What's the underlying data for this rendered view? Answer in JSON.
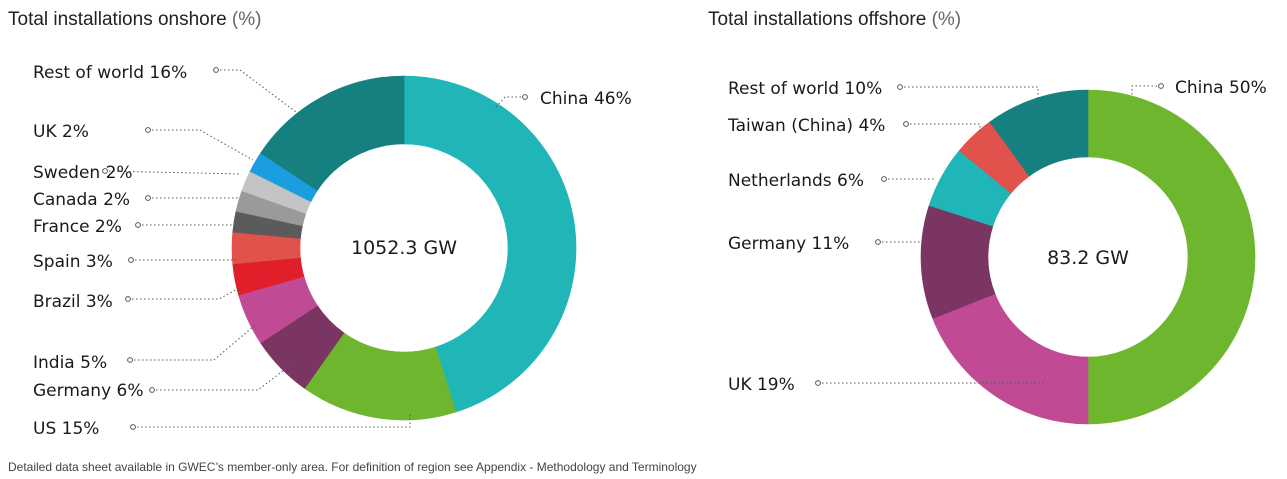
{
  "footnote": "Detailed data sheet available in GWEC’s member-only area. For definition of region see Appendix - Methodology and Terminology",
  "chart_data": [
    {
      "type": "pie",
      "title": "Total installations onshore",
      "title_unit": "(%)",
      "center_label": "1052.3 GW",
      "slices": [
        {
          "label": "China 46%",
          "name": "China",
          "value": 46,
          "color": "#20b5b6"
        },
        {
          "label": "US 15%",
          "name": "US",
          "value": 15,
          "color": "#6fb62f"
        },
        {
          "label": "Germany 6%",
          "name": "Germany",
          "value": 6,
          "color": "#7b3562"
        },
        {
          "label": "India 5%",
          "name": "India",
          "value": 5,
          "color": "#c04a94"
        },
        {
          "label": "Brazil 3%",
          "name": "Brazil",
          "value": 3,
          "color": "#e01f2b"
        },
        {
          "label": "Spain 3%",
          "name": "Spain",
          "value": 3,
          "color": "#e0524b"
        },
        {
          "label": "France 2%",
          "name": "France",
          "value": 2,
          "color": "#5b5b5b"
        },
        {
          "label": "Canada 2%",
          "name": "Canada",
          "value": 2,
          "color": "#9a9a9a"
        },
        {
          "label": "Sweden 2%",
          "name": "Sweden",
          "value": 2,
          "color": "#c4c4c4"
        },
        {
          "label": "UK 2%",
          "name": "UK",
          "value": 2,
          "color": "#1a9ee0"
        },
        {
          "label": "Rest of world 16%",
          "name": "Rest of world",
          "value": 16,
          "color": "#168080"
        }
      ]
    },
    {
      "type": "pie",
      "title": "Total installations offshore",
      "title_unit": "(%)",
      "center_label": "83.2 GW",
      "slices": [
        {
          "label": "China 50%",
          "name": "China",
          "value": 50,
          "color": "#6fb62f"
        },
        {
          "label": "UK 19%",
          "name": "UK",
          "value": 19,
          "color": "#c04a94"
        },
        {
          "label": "Germany 11%",
          "name": "Germany",
          "value": 11,
          "color": "#7b3562"
        },
        {
          "label": "Netherlands 6%",
          "name": "Netherlands",
          "value": 6,
          "color": "#20b5b6"
        },
        {
          "label": "Taiwan (China) 4%",
          "name": "Taiwan (China)",
          "value": 4,
          "color": "#e0524b"
        },
        {
          "label": "Rest of world 10%",
          "name": "Rest of world",
          "value": 10,
          "color": "#168080"
        }
      ]
    }
  ]
}
